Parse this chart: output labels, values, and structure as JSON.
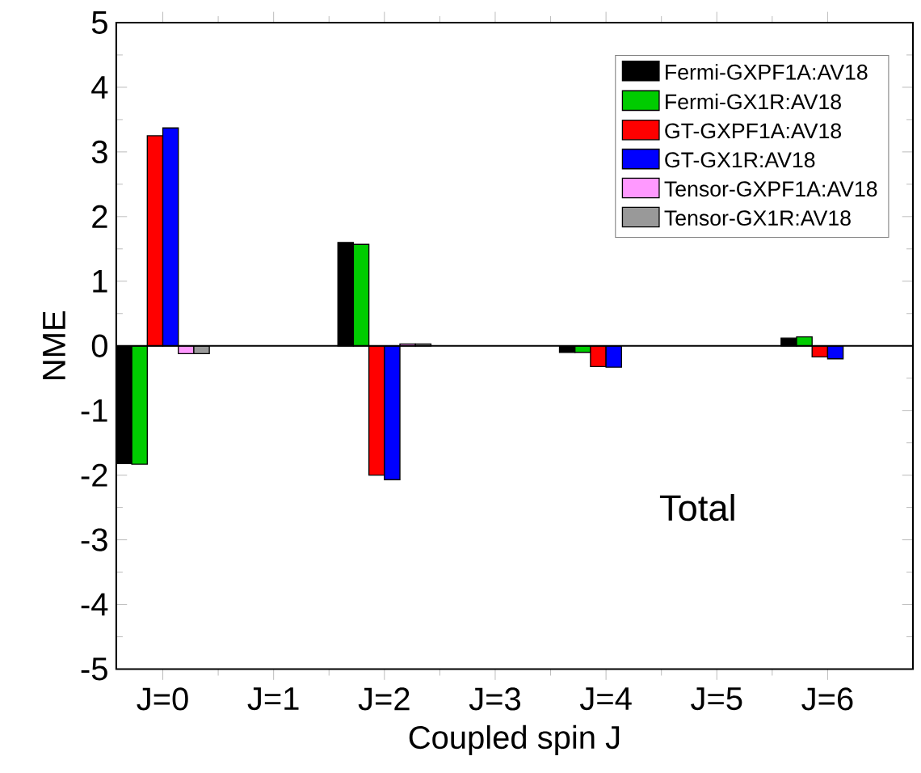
{
  "chart_data": {
    "type": "bar",
    "xlabel": "Coupled spin J",
    "ylabel": "NME",
    "categories": [
      "J=0",
      "J=1",
      "J=2",
      "J=3",
      "J=4",
      "J=5",
      "J=6"
    ],
    "series": [
      {
        "name": "Fermi-GXPF1A:AV18",
        "color": "#000000",
        "values": [
          -1.82,
          null,
          1.6,
          null,
          -0.1,
          null,
          0.12
        ]
      },
      {
        "name": "Fermi-GX1R:AV18",
        "color": "#00cc00",
        "values": [
          -1.83,
          null,
          1.57,
          null,
          -0.1,
          null,
          0.14
        ]
      },
      {
        "name": "GT-GXPF1A:AV18",
        "color": "#ff0000",
        "values": [
          3.25,
          null,
          -2.0,
          null,
          -0.32,
          null,
          -0.17
        ]
      },
      {
        "name": "GT-GX1R:AV18",
        "color": "#0000ff",
        "values": [
          3.37,
          null,
          -2.07,
          null,
          -0.33,
          null,
          -0.2
        ]
      },
      {
        "name": "Tensor-GXPF1A:AV18",
        "color": "#ff99ff",
        "values": [
          -0.12,
          null,
          0.03,
          null,
          null,
          null,
          null
        ]
      },
      {
        "name": "Tensor-GX1R:AV18",
        "color": "#999999",
        "values": [
          -0.12,
          null,
          0.03,
          null,
          null,
          null,
          null
        ]
      }
    ],
    "ylim": [
      -5,
      5
    ],
    "yticks": [
      -5,
      -4,
      -3,
      -2,
      -1,
      0,
      1,
      2,
      3,
      4,
      5
    ],
    "ref_lines": [
      {
        "axis": "y",
        "value": 0
      }
    ],
    "annotations": [
      "Total"
    ],
    "legend": "top right"
  }
}
